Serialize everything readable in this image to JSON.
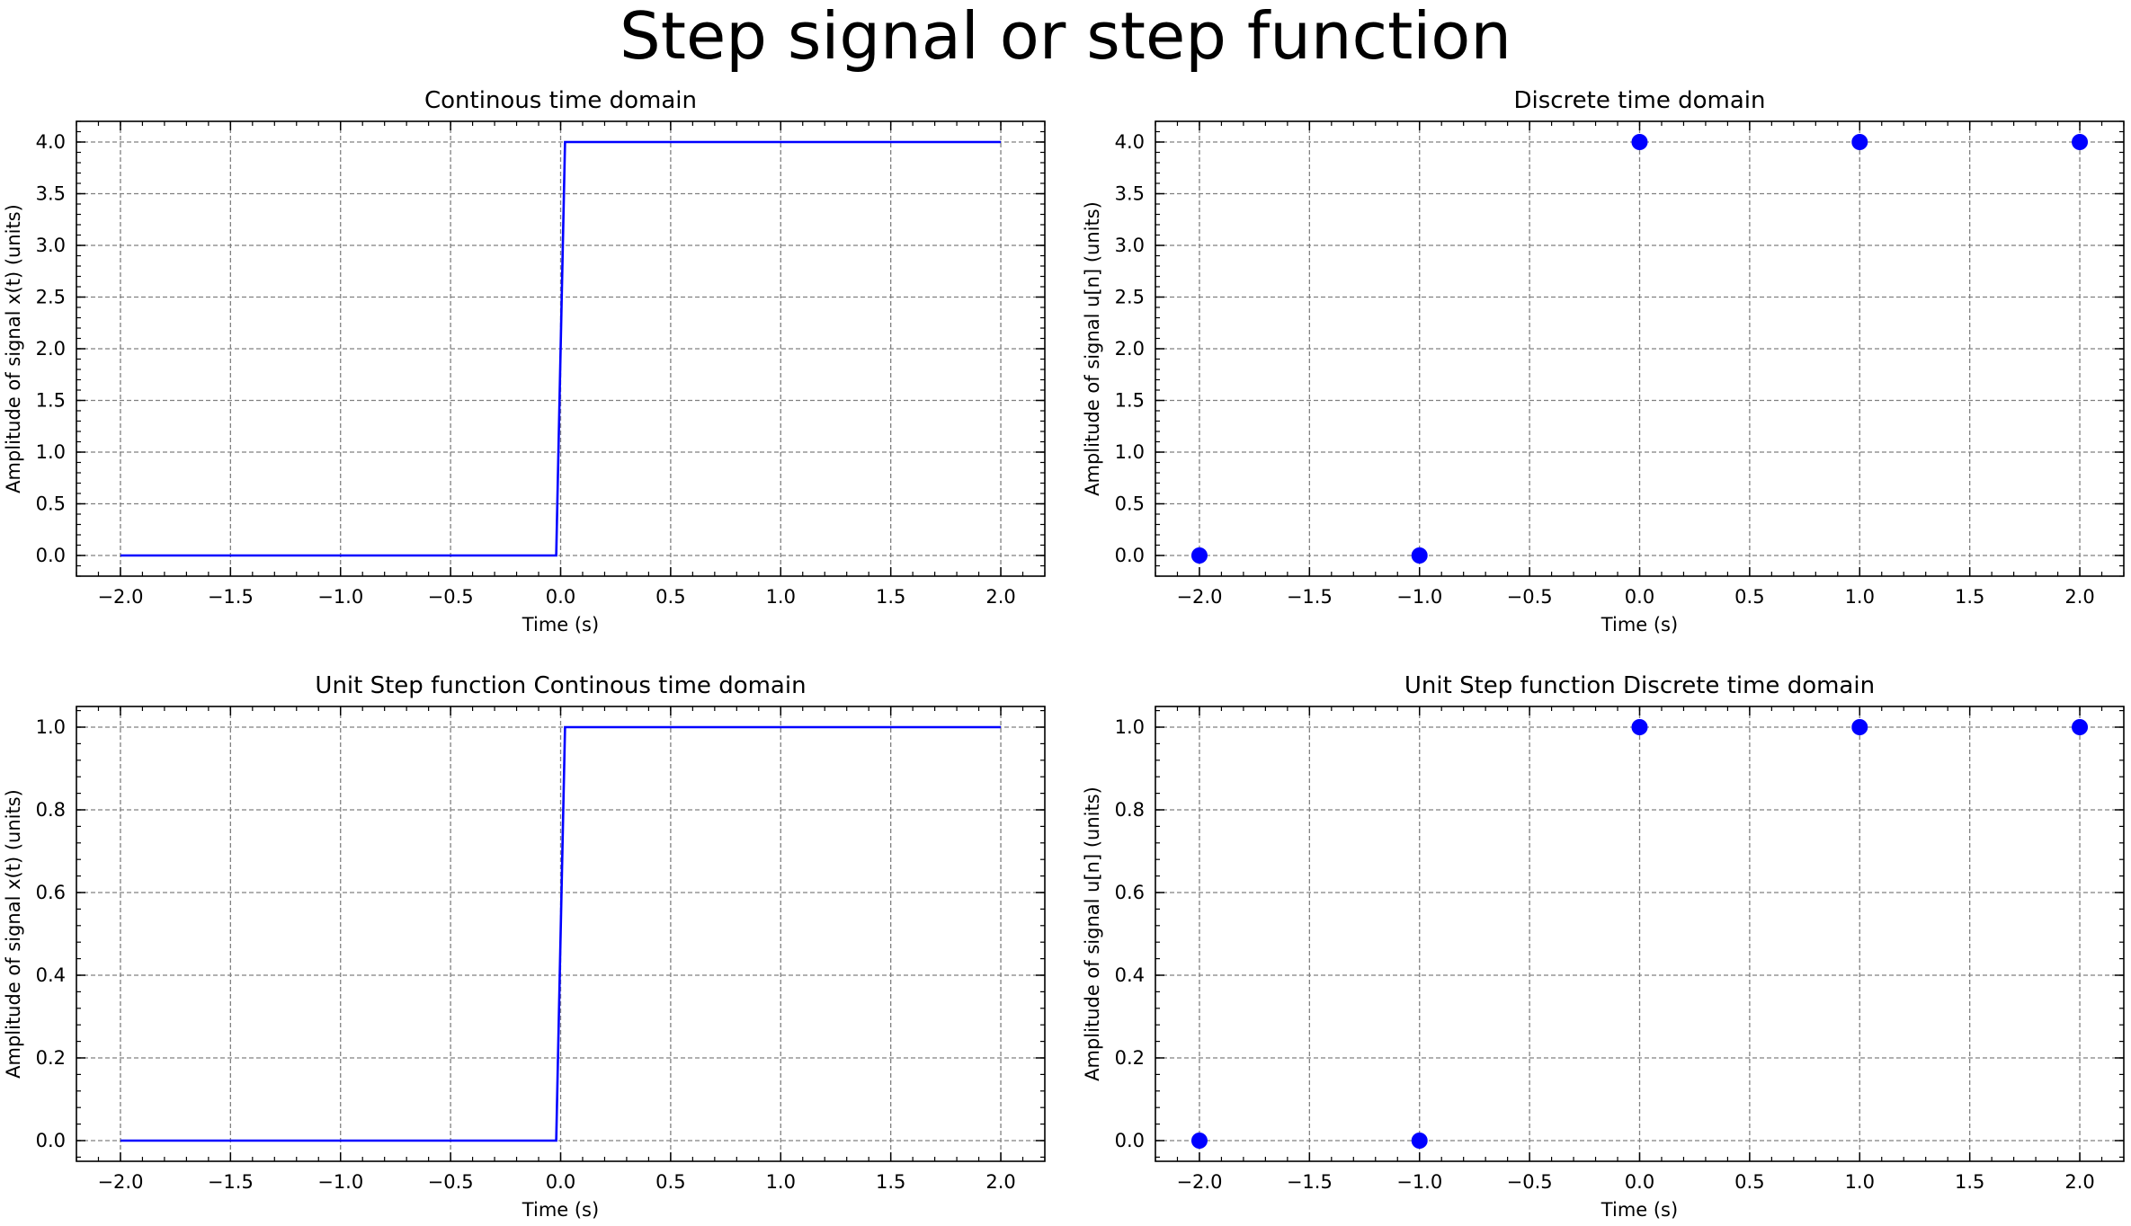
{
  "figure": {
    "suptitle": "Step signal or step function"
  },
  "colors": {
    "series": "#0000ff",
    "grid": "#808080",
    "axes": "#000000"
  },
  "chart_data": [
    {
      "type": "line",
      "title": "Continous time domain",
      "xlabel": "Time (s)",
      "ylabel": "Amplitude of signal x(t) (units)",
      "xlim": [
        -2.2,
        2.2
      ],
      "ylim": [
        -0.2,
        4.2
      ],
      "xticks": [
        "−2.0",
        "−1.5",
        "−1.0",
        "−0.5",
        "0.0",
        "0.5",
        "1.0",
        "1.5",
        "2.0"
      ],
      "yticks": [
        "0.0",
        "0.5",
        "1.0",
        "1.5",
        "2.0",
        "2.5",
        "3.0",
        "3.5",
        "4.0"
      ],
      "grid": true,
      "series": [
        {
          "x": [
            -2.0,
            -0.02,
            0.02,
            2.0
          ],
          "y": [
            0,
            0,
            4,
            4
          ]
        }
      ]
    },
    {
      "type": "scatter",
      "title": "Discrete time domain",
      "xlabel": "Time (s)",
      "ylabel": "Amplitude of signal u[n] (units)",
      "xlim": [
        -2.2,
        2.2
      ],
      "ylim": [
        -0.2,
        4.2
      ],
      "xticks": [
        "−2.0",
        "−1.5",
        "−1.0",
        "−0.5",
        "0.0",
        "0.5",
        "1.0",
        "1.5",
        "2.0"
      ],
      "yticks": [
        "0.0",
        "0.5",
        "1.0",
        "1.5",
        "2.0",
        "2.5",
        "3.0",
        "3.5",
        "4.0"
      ],
      "grid": true,
      "series": [
        {
          "x": [
            -2,
            -1,
            0,
            1,
            2
          ],
          "y": [
            0,
            0,
            4,
            4,
            4
          ]
        }
      ]
    },
    {
      "type": "line",
      "title": "Unit Step function Continous time domain",
      "xlabel": "Time (s)",
      "ylabel": "Amplitude of signal x(t) (units)",
      "xlim": [
        -2.2,
        2.2
      ],
      "ylim": [
        -0.05,
        1.05
      ],
      "xticks": [
        "−2.0",
        "−1.5",
        "−1.0",
        "−0.5",
        "0.0",
        "0.5",
        "1.0",
        "1.5",
        "2.0"
      ],
      "yticks": [
        "0.0",
        "0.2",
        "0.4",
        "0.6",
        "0.8",
        "1.0"
      ],
      "grid": true,
      "series": [
        {
          "x": [
            -2.0,
            -0.02,
            0.02,
            2.0
          ],
          "y": [
            0,
            0,
            1,
            1
          ]
        }
      ]
    },
    {
      "type": "scatter",
      "title": "Unit Step function Discrete time domain",
      "xlabel": "Time (s)",
      "ylabel": "Amplitude of signal u[n] (units)",
      "xlim": [
        -2.2,
        2.2
      ],
      "ylim": [
        -0.05,
        1.05
      ],
      "xticks": [
        "−2.0",
        "−1.5",
        "−1.0",
        "−0.5",
        "0.0",
        "0.5",
        "1.0",
        "1.5",
        "2.0"
      ],
      "yticks": [
        "0.0",
        "0.2",
        "0.4",
        "0.6",
        "0.8",
        "1.0"
      ],
      "grid": true,
      "series": [
        {
          "x": [
            -2,
            -1,
            0,
            1,
            2
          ],
          "y": [
            0,
            0,
            1,
            1,
            1
          ]
        }
      ]
    }
  ]
}
